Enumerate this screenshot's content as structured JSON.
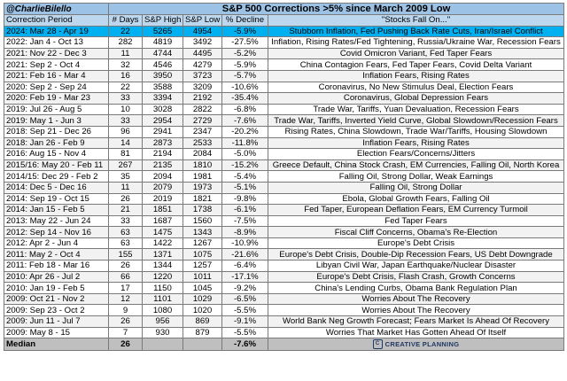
{
  "header": {
    "user": "@CharlieBilello",
    "title": "S&P 500 Corrections >5% since March 2009 Low"
  },
  "columns": [
    "Correction Period",
    "# Days",
    "S&P High",
    "S&P Low",
    "% Decline",
    "\"Stocks Fall On...\""
  ],
  "rows": [
    {
      "period": "2024: Mar 28 - Apr 19",
      "days": "22",
      "high": "5265",
      "low": "4954",
      "decline": "-5.9%",
      "reason": "Stubborn Inflation, Fed Pushing Back Rate Cuts, Iran/Israel Conflict"
    },
    {
      "period": "2022: Jan 4 - Oct 13",
      "days": "282",
      "high": "4819",
      "low": "3492",
      "decline": "-27.5%",
      "reason": "Inflation, Rising Rates/Fed Tightening, Russia/Ukraine War, Recession Fears"
    },
    {
      "period": "2021: Nov 22 - Dec 3",
      "days": "11",
      "high": "4744",
      "low": "4495",
      "decline": "-5.2%",
      "reason": "Covid Omicron Variant, Fed Taper Fears"
    },
    {
      "period": "2021: Sep 2 - Oct 4",
      "days": "32",
      "high": "4546",
      "low": "4279",
      "decline": "-5.9%",
      "reason": "China Contagion Fears, Fed Taper Fears, Covid Delta Variant"
    },
    {
      "period": "2021: Feb 16 - Mar 4",
      "days": "16",
      "high": "3950",
      "low": "3723",
      "decline": "-5.7%",
      "reason": "Inflation Fears, Rising Rates"
    },
    {
      "period": "2020: Sep 2 - Sep 24",
      "days": "22",
      "high": "3588",
      "low": "3209",
      "decline": "-10.6%",
      "reason": "Coronavirus, No New Stimulus Deal, Election Fears"
    },
    {
      "period": "2020: Feb 19 - Mar 23",
      "days": "33",
      "high": "3394",
      "low": "2192",
      "decline": "-35.4%",
      "reason": "Coronavirus, Global Depression Fears"
    },
    {
      "period": "2019: Jul 26 - Aug 5",
      "days": "10",
      "high": "3028",
      "low": "2822",
      "decline": "-6.8%",
      "reason": "Trade War, Tariffs, Yuan Devaluation, Recession Fears"
    },
    {
      "period": "2019: May 1 - Jun 3",
      "days": "33",
      "high": "2954",
      "low": "2729",
      "decline": "-7.6%",
      "reason": "Trade War, Tariffs, Inverted Yield Curve, Global Slowdown/Recession Fears"
    },
    {
      "period": "2018: Sep 21 - Dec 26",
      "days": "96",
      "high": "2941",
      "low": "2347",
      "decline": "-20.2%",
      "reason": "Rising Rates, China Slowdown, Trade War/Tariffs, Housing Slowdown"
    },
    {
      "period": "2018: Jan 26 - Feb 9",
      "days": "14",
      "high": "2873",
      "low": "2533",
      "decline": "-11.8%",
      "reason": "Inflation Fears, Rising Rates"
    },
    {
      "period": "2016: Aug 15 - Nov 4",
      "days": "81",
      "high": "2194",
      "low": "2084",
      "decline": "-5.0%",
      "reason": "Election Fears/Concerns/Jitters"
    },
    {
      "period": "2015/16: May 20 - Feb 11",
      "days": "267",
      "high": "2135",
      "low": "1810",
      "decline": "-15.2%",
      "reason": "Greece Default, China Stock Crash, EM Currencies, Falling Oil, North Korea"
    },
    {
      "period": "2014/15: Dec 29 - Feb 2",
      "days": "35",
      "high": "2094",
      "low": "1981",
      "decline": "-5.4%",
      "reason": "Falling Oil, Strong Dollar, Weak Earnings"
    },
    {
      "period": "2014: Dec 5 - Dec 16",
      "days": "11",
      "high": "2079",
      "low": "1973",
      "decline": "-5.1%",
      "reason": "Falling Oil, Strong Dollar"
    },
    {
      "period": "2014: Sep 19 - Oct 15",
      "days": "26",
      "high": "2019",
      "low": "1821",
      "decline": "-9.8%",
      "reason": "Ebola, Global Growth Fears, Falling Oil"
    },
    {
      "period": "2014: Jan 15 - Feb 5",
      "days": "21",
      "high": "1851",
      "low": "1738",
      "decline": "-6.1%",
      "reason": "Fed Taper, European Deflation Fears, EM Currency Turmoil"
    },
    {
      "period": "2013: May 22 - Jun 24",
      "days": "33",
      "high": "1687",
      "low": "1560",
      "decline": "-7.5%",
      "reason": "Fed Taper Fears"
    },
    {
      "period": "2012: Sep 14 - Nov 16",
      "days": "63",
      "high": "1475",
      "low": "1343",
      "decline": "-8.9%",
      "reason": "Fiscal Cliff Concerns, Obama's Re-Election"
    },
    {
      "period": "2012: Apr 2 - Jun 4",
      "days": "63",
      "high": "1422",
      "low": "1267",
      "decline": "-10.9%",
      "reason": "Europe's Debt Crisis"
    },
    {
      "period": "2011: May 2 - Oct 4",
      "days": "155",
      "high": "1371",
      "low": "1075",
      "decline": "-21.6%",
      "reason": "Europe's Debt Crisis, Double-Dip Recession Fears, US Debt Downgrade"
    },
    {
      "period": "2011: Feb 18 - Mar 16",
      "days": "26",
      "high": "1344",
      "low": "1257",
      "decline": "-6.4%",
      "reason": "Libyan Civil War, Japan Earthquake/Nuclear Disaster"
    },
    {
      "period": "2010: Apr 26 - Jul 2",
      "days": "66",
      "high": "1220",
      "low": "1011",
      "decline": "-17.1%",
      "reason": "Europe's Debt Crisis, Flash Crash, Growth Concerns"
    },
    {
      "period": "2010: Jan 19 - Feb 5",
      "days": "17",
      "high": "1150",
      "low": "1045",
      "decline": "-9.2%",
      "reason": "China's Lending Curbs, Obama Bank Regulation Plan"
    },
    {
      "period": "2009: Oct 21 - Nov 2",
      "days": "12",
      "high": "1101",
      "low": "1029",
      "decline": "-6.5%",
      "reason": "Worries About The Recovery"
    },
    {
      "period": "2009: Sep 23 - Oct 2",
      "days": "9",
      "high": "1080",
      "low": "1020",
      "decline": "-5.5%",
      "reason": "Worries About The Recovery"
    },
    {
      "period": "2009: Jun 11 - Jul 7",
      "days": "26",
      "high": "956",
      "low": "869",
      "decline": "-9.1%",
      "reason": "World Bank Neg Growth Forecast; Fears Market Is Ahead Of Recovery"
    },
    {
      "period": "2009: May 8 - 15",
      "days": "7",
      "high": "930",
      "low": "879",
      "decline": "-5.5%",
      "reason": "Worries That Market Has Gotten Ahead Of Itself"
    }
  ],
  "median": {
    "label": "Median",
    "days": "26",
    "decline": "-7.6%"
  },
  "logo": {
    "text": "CREATIVE PLANNING",
    "mark": "C"
  },
  "colors": {
    "header": "#9cc3e6",
    "highlight": "#00b0f0",
    "median": "#bfbfbf"
  },
  "chart_data": {
    "type": "table",
    "title": "S&P 500 Corrections >5% since March 2009 Low",
    "columns": [
      "Correction Period",
      "# Days",
      "S&P High",
      "S&P Low",
      "% Decline",
      "\"Stocks Fall On...\""
    ],
    "median_days": 26,
    "median_decline_pct": -7.6
  }
}
